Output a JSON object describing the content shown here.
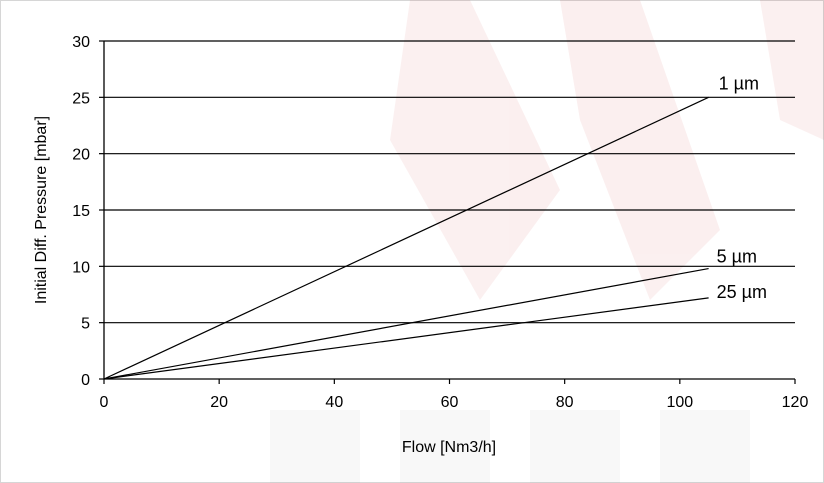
{
  "chart_data": {
    "type": "line",
    "xlabel": "Flow [Nm3/h]",
    "ylabel": "Initial Diff. Pressure [mbar]",
    "xlim": [
      0,
      120
    ],
    "ylim": [
      0,
      30
    ],
    "x_ticks": [
      0,
      20,
      40,
      60,
      80,
      100,
      120
    ],
    "y_ticks": [
      0,
      5,
      10,
      15,
      20,
      25,
      30
    ],
    "grid": "horizontal",
    "legend": "none",
    "series": [
      {
        "name": "1 µm",
        "x": [
          0,
          105
        ],
        "y": [
          0,
          25
        ]
      },
      {
        "name": "5 µm",
        "x": [
          0,
          105
        ],
        "y": [
          0,
          9.8
        ]
      },
      {
        "name": "25 µm",
        "x": [
          0,
          105
        ],
        "y": [
          0,
          7.2
        ]
      }
    ]
  }
}
